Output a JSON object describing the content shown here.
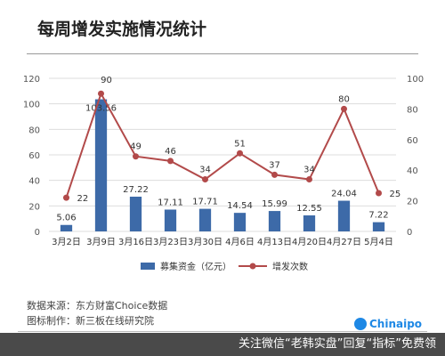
{
  "title": "每周增发实施情况统计",
  "source_line": "数据来源：东方财富Choice数据",
  "maker_line": "图标制作：新三板在线研究院",
  "logo_text": "Chinaipo",
  "footer_text": "关注微信“老韩实盘”回复“指标”免费领",
  "colors": {
    "bar": "#3d6aa8",
    "line": "#b24a4a",
    "grid": "#dddddd",
    "footer": "#4a4a4a"
  },
  "chart_data": {
    "type": "bar+line",
    "categories": [
      "3月2日",
      "3月9日",
      "3月16日",
      "3月23日",
      "3月30日",
      "4月6日",
      "4月13日",
      "4月20日",
      "4月27日",
      "5月4日"
    ],
    "series": [
      {
        "name": "募集资金（亿元）",
        "type": "bar",
        "axis": "left",
        "values": [
          5.06,
          103.56,
          27.22,
          17.11,
          17.71,
          14.54,
          15.99,
          12.55,
          24.04,
          7.22
        ]
      },
      {
        "name": "增发次数",
        "type": "line",
        "axis": "right",
        "values": [
          22,
          90,
          49,
          46,
          34,
          51,
          37,
          34,
          80,
          25
        ]
      }
    ],
    "ylim_left": [
      0,
      120
    ],
    "yticks_left": [
      0,
      20,
      40,
      60,
      80,
      100,
      120
    ],
    "ylim_right": [
      0,
      100
    ],
    "yticks_right": [
      0,
      20,
      40,
      60,
      80,
      100
    ],
    "legend_position": "bottom-center",
    "grid": true
  }
}
